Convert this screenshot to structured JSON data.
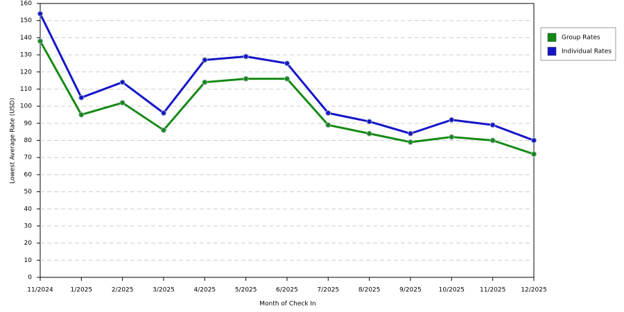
{
  "chart_data": {
    "type": "line",
    "x_label": "Month of Check In",
    "y_label": "Lowest Average Rate (USD)",
    "categories": [
      "11/2024",
      "1/2025",
      "2/2025",
      "3/2025",
      "4/2025",
      "5/2025",
      "6/2025",
      "7/2025",
      "8/2025",
      "9/2025",
      "10/2025",
      "11/2025",
      "12/2025"
    ],
    "series": [
      {
        "name": "Group Rates",
        "color": "#138a13",
        "values": [
          138,
          95,
          102,
          86,
          114,
          116,
          116,
          89,
          84,
          79,
          82,
          80,
          72
        ]
      },
      {
        "name": "Individual Rates",
        "color": "#1414c8",
        "values": [
          154,
          105,
          114,
          96,
          127,
          129,
          125,
          96,
          91,
          84,
          92,
          89,
          80
        ]
      }
    ],
    "ylim": [
      0,
      160
    ],
    "yticks": [
      0,
      10,
      20,
      30,
      40,
      50,
      60,
      70,
      80,
      90,
      100,
      110,
      120,
      130,
      140,
      150,
      160
    ],
    "grid": true,
    "legend": "right"
  }
}
